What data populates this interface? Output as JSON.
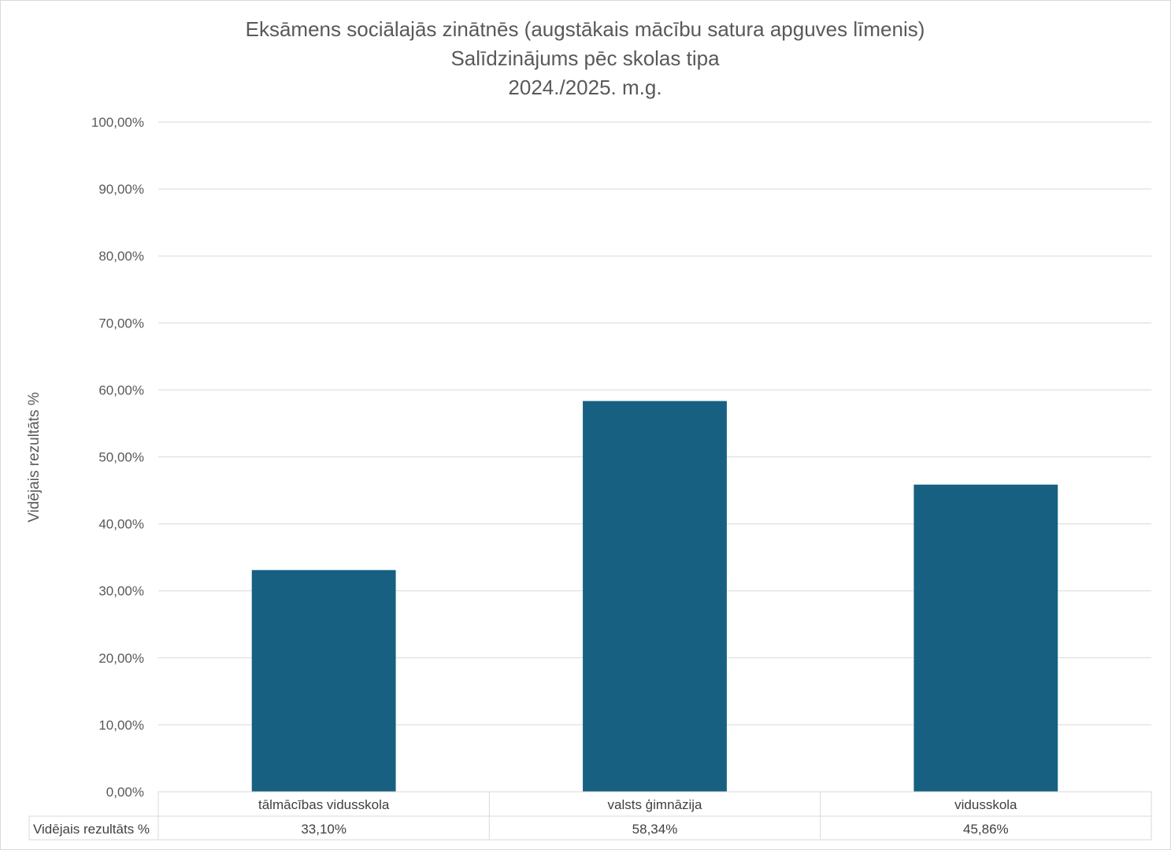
{
  "chart_data": {
    "type": "bar",
    "title_lines": [
      "Eksāmens sociālajās zinātnēs (augstākais mācību satura apguves līmenis)",
      "Salīdzinājums pēc skolas tipa",
      "2024./2025. m.g."
    ],
    "ylabel": "Vidējais rezultāts %",
    "ylim": [
      0,
      100
    ],
    "yticks": [
      0,
      10,
      20,
      30,
      40,
      50,
      60,
      70,
      80,
      90,
      100
    ],
    "ytick_labels": [
      "0,00%",
      "10,00%",
      "20,00%",
      "30,00%",
      "40,00%",
      "50,00%",
      "60,00%",
      "70,00%",
      "80,00%",
      "90,00%",
      "100,00%"
    ],
    "categories": [
      "tālmācības vidusskola",
      "valsts ģimnāzija",
      "vidusskola"
    ],
    "series": [
      {
        "name": "Vidējais rezultāts %",
        "values": [
          33.1,
          58.34,
          45.86
        ],
        "value_labels": [
          "33,10%",
          "58,34%",
          "45,86%"
        ]
      }
    ],
    "grid": true,
    "legend": "data-table",
    "bar_color": "#176082",
    "grid_color": "#d9d9d9"
  }
}
